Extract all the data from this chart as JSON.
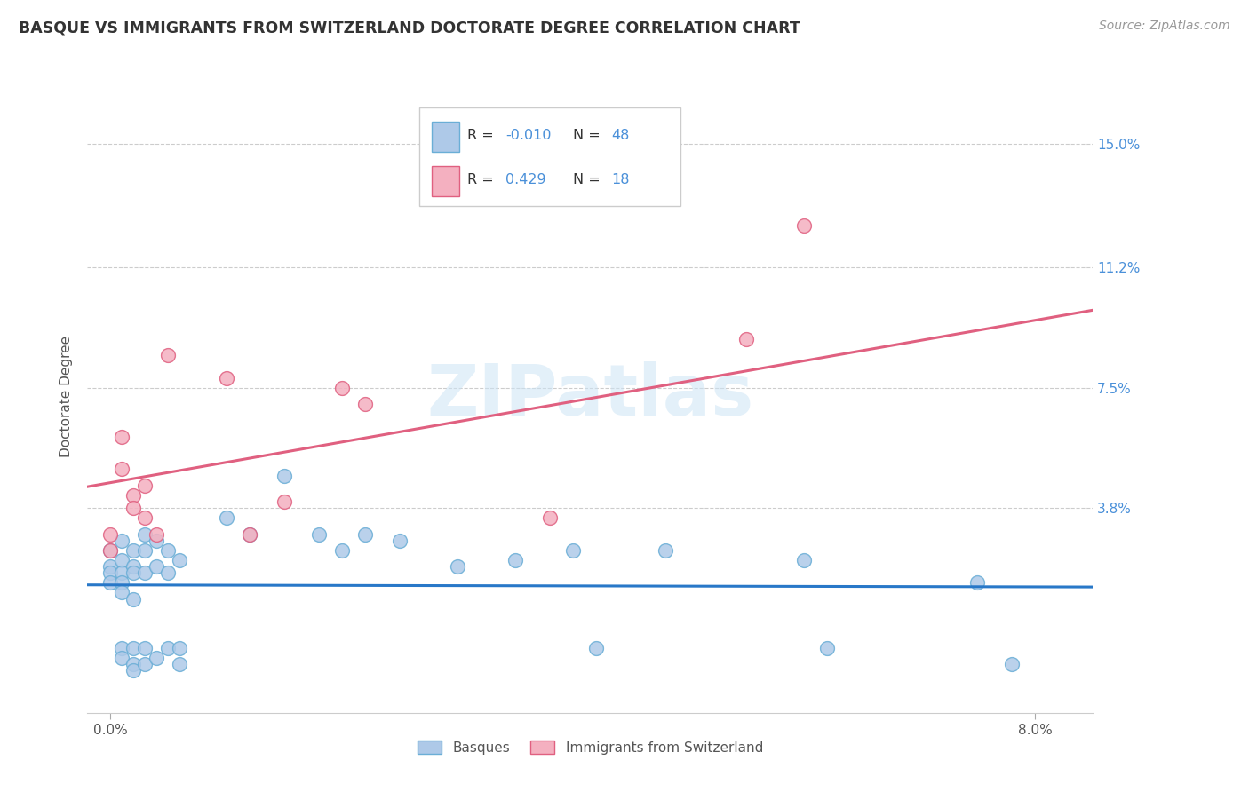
{
  "title": "BASQUE VS IMMIGRANTS FROM SWITZERLAND DOCTORATE DEGREE CORRELATION CHART",
  "source": "Source: ZipAtlas.com",
  "ylabel": "Doctorate Degree",
  "y_tick_labels": [
    "3.8%",
    "7.5%",
    "11.2%",
    "15.0%"
  ],
  "y_tick_values": [
    0.038,
    0.075,
    0.112,
    0.15
  ],
  "xlim": [
    -0.002,
    0.085
  ],
  "ylim": [
    -0.025,
    0.17
  ],
  "basque_color_edge": "#6aaed6",
  "basque_color_fill": "#aec9e8",
  "swiss_color_edge": "#e06080",
  "swiss_color_fill": "#f4b0c0",
  "trend_basque_color": "#2878c8",
  "trend_swiss_color": "#e06080",
  "watermark": "ZIPatlas",
  "basque_r": -0.01,
  "basque_n": 48,
  "swiss_r": 0.429,
  "swiss_n": 18,
  "basque_x": [
    0.0,
    0.0,
    0.0,
    0.0,
    0.001,
    0.001,
    0.001,
    0.001,
    0.001,
    0.001,
    0.001,
    0.002,
    0.002,
    0.002,
    0.002,
    0.002,
    0.002,
    0.002,
    0.003,
    0.003,
    0.003,
    0.003,
    0.003,
    0.004,
    0.004,
    0.004,
    0.005,
    0.005,
    0.005,
    0.006,
    0.006,
    0.006,
    0.01,
    0.012,
    0.015,
    0.018,
    0.02,
    0.022,
    0.025,
    0.03,
    0.035,
    0.04,
    0.042,
    0.048,
    0.06,
    0.062,
    0.075,
    0.078
  ],
  "basque_y": [
    0.025,
    0.02,
    0.018,
    0.015,
    0.028,
    0.022,
    0.018,
    0.015,
    0.012,
    -0.005,
    -0.008,
    0.025,
    0.02,
    0.018,
    0.01,
    -0.005,
    -0.01,
    -0.012,
    0.03,
    0.025,
    0.018,
    -0.005,
    -0.01,
    0.028,
    0.02,
    -0.008,
    0.025,
    0.018,
    -0.005,
    0.022,
    -0.005,
    -0.01,
    0.035,
    0.03,
    0.048,
    0.03,
    0.025,
    0.03,
    0.028,
    0.02,
    0.022,
    0.025,
    -0.005,
    0.025,
    0.022,
    -0.005,
    0.015,
    -0.01
  ],
  "swiss_x": [
    0.0,
    0.0,
    0.001,
    0.001,
    0.002,
    0.002,
    0.003,
    0.003,
    0.004,
    0.005,
    0.01,
    0.012,
    0.015,
    0.02,
    0.022,
    0.038,
    0.055,
    0.06
  ],
  "swiss_y": [
    0.03,
    0.025,
    0.06,
    0.05,
    0.042,
    0.038,
    0.045,
    0.035,
    0.03,
    0.085,
    0.078,
    0.03,
    0.04,
    0.075,
    0.07,
    0.035,
    0.09,
    0.125
  ],
  "legend_r1": "R = ",
  "legend_v1": "-0.010",
  "legend_n1": "  N = ",
  "legend_nv1": "48",
  "legend_r2": "R =  ",
  "legend_v2": "0.429",
  "legend_n2": "  N = ",
  "legend_nv2": "18"
}
